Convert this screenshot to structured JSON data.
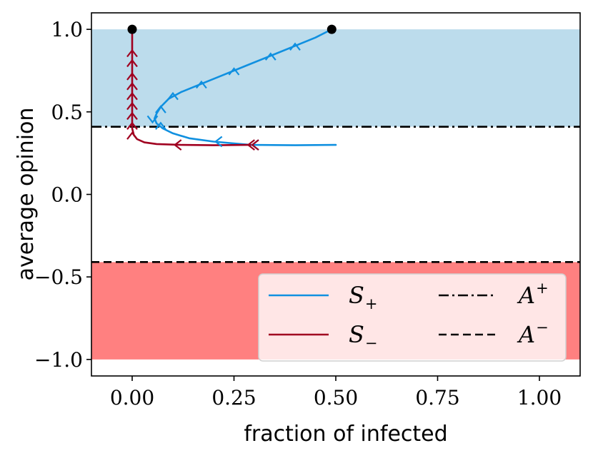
{
  "chart_data": {
    "type": "line",
    "title": "",
    "xlabel": "fraction of infected",
    "ylabel": "average opinion",
    "xlim": [
      -0.1,
      1.1
    ],
    "ylim": [
      -1.1,
      1.1
    ],
    "x_ticks": [
      0.0,
      0.25,
      0.5,
      0.75,
      1.0
    ],
    "y_ticks": [
      -1.0,
      -0.5,
      0.0,
      0.5,
      1.0
    ],
    "x_tick_labels": [
      "0.00",
      "0.25",
      "0.50",
      "0.75",
      "1.00"
    ],
    "y_tick_labels": [
      "−1.0",
      "−0.5",
      "0.0",
      "0.5",
      "1.0"
    ],
    "grid": false,
    "legend_position": "lower-right",
    "regions": [
      {
        "name": "positive-region",
        "y_from": 0.41,
        "y_to": 1.0,
        "color": "#bcdcec"
      },
      {
        "name": "negative-region",
        "y_from": -1.0,
        "y_to": -0.41,
        "color": "#ff8080"
      }
    ],
    "series": [
      {
        "name": "S+",
        "label_main": "S",
        "label_sub": "+",
        "color": "#1090e0",
        "points": [
          [
            0.49,
            1.0
          ],
          [
            0.45,
            0.95
          ],
          [
            0.4,
            0.9
          ],
          [
            0.34,
            0.84
          ],
          [
            0.28,
            0.78
          ],
          [
            0.22,
            0.72
          ],
          [
            0.16,
            0.66
          ],
          [
            0.12,
            0.62
          ],
          [
            0.09,
            0.58
          ],
          [
            0.07,
            0.53
          ],
          [
            0.06,
            0.49
          ],
          [
            0.055,
            0.46
          ],
          [
            0.06,
            0.43
          ],
          [
            0.075,
            0.4
          ],
          [
            0.1,
            0.37
          ],
          [
            0.14,
            0.34
          ],
          [
            0.2,
            0.32
          ],
          [
            0.29,
            0.3
          ],
          [
            0.4,
            0.298
          ],
          [
            0.5,
            0.3
          ]
        ],
        "arrows": [
          [
            0.4,
            0.9
          ],
          [
            0.34,
            0.84
          ],
          [
            0.25,
            0.75
          ],
          [
            0.17,
            0.67
          ],
          [
            0.1,
            0.6
          ],
          [
            0.07,
            0.52
          ],
          [
            0.05,
            0.45
          ],
          [
            0.07,
            0.42
          ],
          [
            0.21,
            0.32
          ],
          [
            0.3,
            0.3
          ]
        ],
        "arrow_dirs": [
          "up",
          "up",
          "up",
          "up",
          "up",
          "up",
          "down",
          "up",
          "left",
          "left"
        ],
        "endpoint": [
          0.49,
          1.0
        ]
      },
      {
        "name": "S−",
        "label_main": "S",
        "label_sub": "−",
        "color": "#a00020",
        "points": [
          [
            0.29,
            0.3
          ],
          [
            0.2,
            0.298
          ],
          [
            0.12,
            0.3
          ],
          [
            0.06,
            0.305
          ],
          [
            0.03,
            0.315
          ],
          [
            0.012,
            0.335
          ],
          [
            0.004,
            0.36
          ],
          [
            0.0,
            0.4
          ],
          [
            0.0,
            0.55
          ],
          [
            0.0,
            0.75
          ],
          [
            0.0,
            1.0
          ]
        ],
        "arrows": [
          [
            0.0,
            0.36
          ],
          [
            0.0,
            0.42
          ],
          [
            0.0,
            0.48
          ],
          [
            0.0,
            0.54
          ],
          [
            0.0,
            0.6
          ],
          [
            0.0,
            0.66
          ],
          [
            0.0,
            0.72
          ],
          [
            0.0,
            0.8
          ],
          [
            0.0,
            0.86
          ],
          [
            0.3,
            0.3
          ],
          [
            0.11,
            0.3
          ],
          [
            0.29,
            0.3
          ]
        ],
        "arrow_dirs": [
          "up",
          "up",
          "up",
          "up",
          "up",
          "up",
          "up",
          "up",
          "up",
          "left",
          "left",
          "left"
        ],
        "endpoint": [
          0.0,
          1.0
        ]
      }
    ],
    "hlines": [
      {
        "name": "A+",
        "label_main": "A",
        "label_sup": "+",
        "y": 0.41,
        "style": "dashdot",
        "color": "#000000"
      },
      {
        "name": "A−",
        "label_main": "A",
        "label_sup": "−",
        "y": -0.41,
        "style": "dashed",
        "color": "#000000"
      }
    ]
  }
}
